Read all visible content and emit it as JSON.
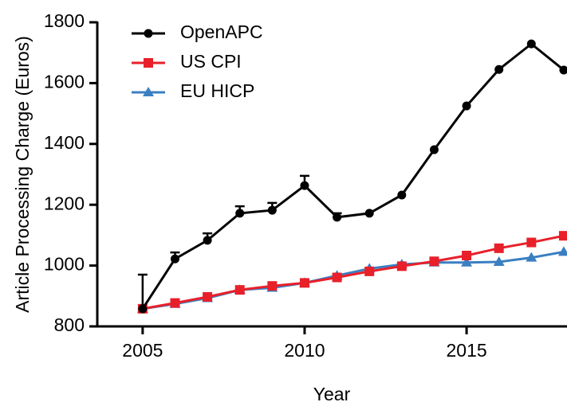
{
  "chart_data": {
    "type": "line",
    "x_label": "Year",
    "y_label": "Article Processing Charge (Euros)",
    "x": [
      2005,
      2006,
      2007,
      2008,
      2009,
      2010,
      2011,
      2012,
      2013,
      2014,
      2015,
      2016,
      2017,
      2018
    ],
    "series": [
      {
        "name": "OpenAPC",
        "color": "#000000",
        "marker": "circle",
        "values": [
          858,
          1022,
          1083,
          1172,
          1182,
          1263,
          1159,
          1172,
          1232,
          1381,
          1525,
          1645,
          1729,
          1643
        ],
        "errors": [
          112,
          21,
          23,
          23,
          24,
          32,
          13,
          0,
          0,
          0,
          0,
          0,
          0,
          0
        ]
      },
      {
        "name": "US CPI",
        "color": "#e8202a",
        "marker": "square",
        "values": [
          858,
          877,
          897,
          920,
          933,
          943,
          961,
          981,
          998,
          1014,
          1033,
          1057,
          1076,
          1098
        ]
      },
      {
        "name": "EU HICP",
        "color": "#3a7fc1",
        "marker": "triangle",
        "values": [
          858,
          874,
          893,
          920,
          927,
          943,
          967,
          990,
          1004,
          1010,
          1010,
          1012,
          1026,
          1045
        ]
      }
    ],
    "xlim": [
      2003.6,
      2018.1
    ],
    "ylim": [
      800,
      1800
    ],
    "xticks": [
      2005,
      2010,
      2015
    ],
    "yticks": [
      800,
      1000,
      1200,
      1400,
      1600,
      1800
    ],
    "grid": false,
    "legend": "upper left"
  }
}
